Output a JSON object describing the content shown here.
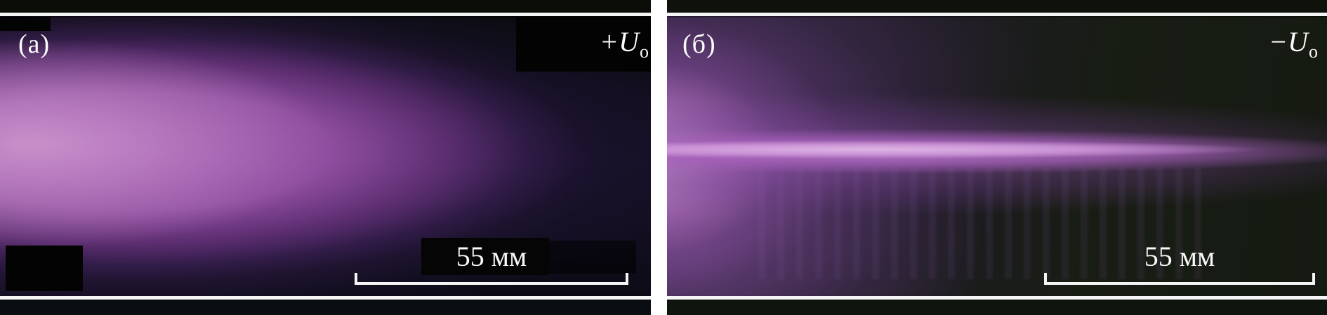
{
  "figure": {
    "type": "plasma-discharge-photographs",
    "panels": [
      {
        "label": "(а)",
        "voltage": {
          "sign": "+",
          "symbol": "U",
          "subscript": "о"
        },
        "scale_bar": {
          "label": "55 мм"
        }
      },
      {
        "label": "(б)",
        "voltage": {
          "sign": "−",
          "symbol": "U",
          "subscript": "о"
        },
        "scale_bar": {
          "label": "55 мм"
        }
      }
    ],
    "colors": {
      "plasma_core": "#cf98d2",
      "plasma_mid": "#9b53ab",
      "plasma_glow": "#5e2f82",
      "background_dark_blue": "#0a0911",
      "background_dark_green": "#161b12",
      "wall_line": "#f5f5f5",
      "annotation_text": "#fbfbfb",
      "divider": "#ffffff"
    }
  }
}
